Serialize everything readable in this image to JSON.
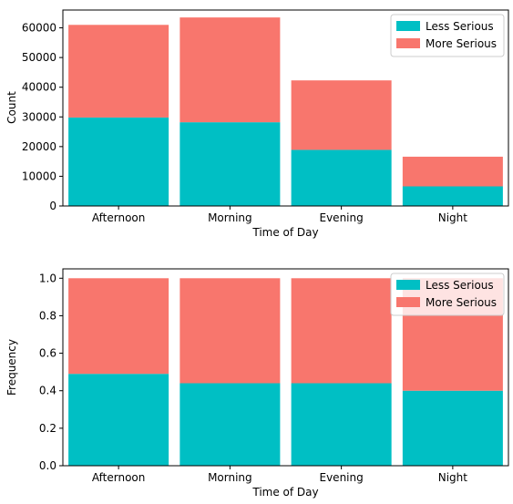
{
  "colors": {
    "less_serious": "#00BFC4",
    "more_serious": "#F8766D"
  },
  "chart_data": [
    {
      "type": "bar",
      "stacked": true,
      "title": "",
      "xlabel": "Time of Day",
      "ylabel": "Count",
      "categories": [
        "Afternoon",
        "Morning",
        "Evening",
        "Night"
      ],
      "ylim": [
        0,
        66000
      ],
      "yticks": [
        0,
        10000,
        20000,
        30000,
        40000,
        50000,
        60000
      ],
      "ytick_labels": [
        "0",
        "10000",
        "20000",
        "30000",
        "40000",
        "50000",
        "60000"
      ],
      "legend_position": "top-right",
      "series": [
        {
          "name": "Less Serious",
          "color": "#00BFC4",
          "values": [
            29800,
            28200,
            18900,
            6600
          ]
        },
        {
          "name": "More Serious",
          "color": "#F8766D",
          "values": [
            31200,
            35300,
            23400,
            10000
          ]
        }
      ]
    },
    {
      "type": "bar",
      "stacked": true,
      "title": "",
      "xlabel": "Time of Day",
      "ylabel": "Frequency",
      "categories": [
        "Afternoon",
        "Morning",
        "Evening",
        "Night"
      ],
      "ylim": [
        0,
        1.05
      ],
      "yticks": [
        0,
        0.2,
        0.4,
        0.6,
        0.8,
        1.0
      ],
      "ytick_labels": [
        "0.0",
        "0.2",
        "0.4",
        "0.6",
        "0.8",
        "1.0"
      ],
      "legend_position": "top-right",
      "series": [
        {
          "name": "Less Serious",
          "color": "#00BFC4",
          "values": [
            0.49,
            0.44,
            0.44,
            0.4
          ]
        },
        {
          "name": "More Serious",
          "color": "#F8766D",
          "values": [
            0.51,
            0.56,
            0.56,
            0.6
          ]
        }
      ]
    }
  ]
}
